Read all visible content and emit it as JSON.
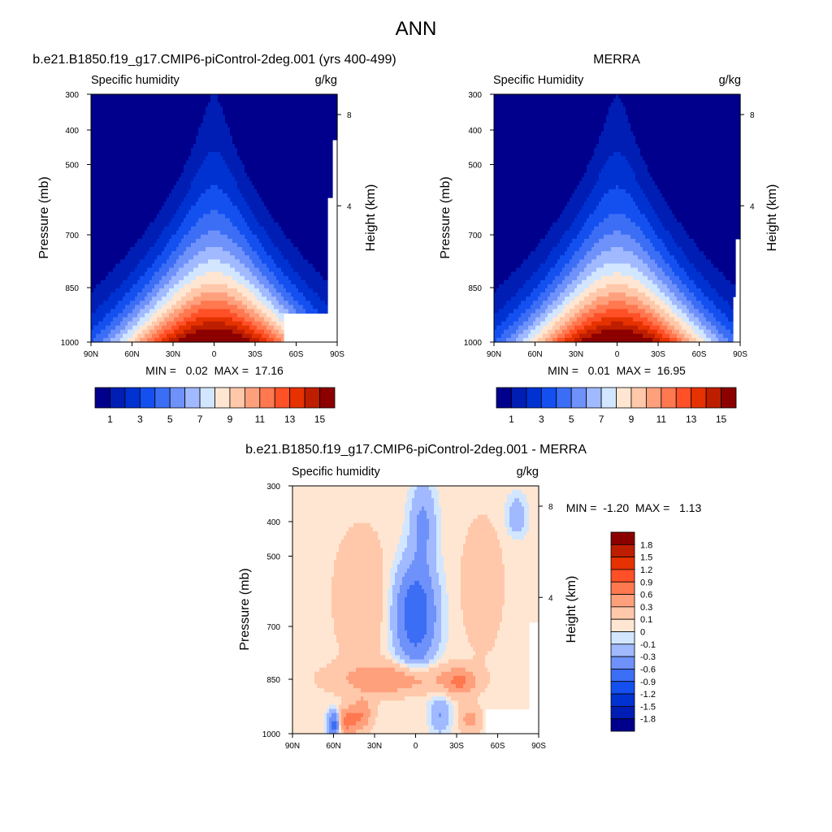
{
  "figure": {
    "title": "ANN"
  },
  "colormaps": {
    "field": [
      "#00008c",
      "#001eb4",
      "#0032d2",
      "#1450f0",
      "#3c6ef5",
      "#6e91fa",
      "#a0b9ff",
      "#d2e6ff",
      "#ffe6d2",
      "#ffc8aa",
      "#ffa07d",
      "#ff7850",
      "#ff5028",
      "#e63200",
      "#be1e00",
      "#8c0000"
    ],
    "diff": [
      "#00008c",
      "#001eb4",
      "#0032d2",
      "#1450f0",
      "#3c6ef5",
      "#6e91fa",
      "#a0b9ff",
      "#d2e6ff",
      "#ffe6d2",
      "#ffc8aa",
      "#ffa07d",
      "#ff7850",
      "#ff5028",
      "#e63200",
      "#be1e00",
      "#8c0000"
    ]
  },
  "chart_data": [
    {
      "id": "model",
      "type": "heatmap",
      "title": "b.e21.B1850.f19_g17.CMIP6-piControl-2deg.001 (yrs 400-499)",
      "left_label": "Specific humidity",
      "right_label": "g/kg",
      "ylabel": "Pressure (mb)",
      "ylabel_right": "Height (km)",
      "xticks": [
        "90N",
        "60N",
        "30N",
        "0",
        "30S",
        "60S",
        "90S"
      ],
      "yticks": [
        "300",
        "400",
        "500",
        "700",
        "850",
        "1000"
      ],
      "yticks_right": [
        "8",
        "4"
      ],
      "stats": "MIN =   0.02  MAX =  17.16",
      "cb_labels": [
        "1",
        "3",
        "5",
        "7",
        "9",
        "11",
        "13",
        "15"
      ],
      "max_value": 17.16,
      "mask_bottom_right": true
    },
    {
      "id": "obs",
      "type": "heatmap",
      "title": "MERRA",
      "left_label": "Specific Humidity",
      "right_label": "g/kg",
      "ylabel": "Pressure (mb)",
      "ylabel_right": "Height (km)",
      "xticks": [
        "90N",
        "60N",
        "30N",
        "0",
        "30S",
        "60S",
        "90S"
      ],
      "yticks": [
        "300",
        "400",
        "500",
        "700",
        "850",
        "1000"
      ],
      "yticks_right": [
        "8",
        "4"
      ],
      "stats": "MIN =   0.01  MAX =  16.95",
      "cb_labels": [
        "1",
        "3",
        "5",
        "7",
        "9",
        "11",
        "13",
        "15"
      ],
      "max_value": 16.95,
      "mask_bottom_right": false
    },
    {
      "id": "diff",
      "type": "heatmap",
      "title": "b.e21.B1850.f19_g17.CMIP6-piControl-2deg.001 - MERRA",
      "left_label": "Specific humidity",
      "right_label": "g/kg",
      "ylabel": "Pressure (mb)",
      "ylabel_right": "Height (km)",
      "xticks": [
        "90N",
        "60N",
        "30N",
        "0",
        "30S",
        "60S",
        "90S"
      ],
      "yticks": [
        "300",
        "400",
        "500",
        "700",
        "850",
        "1000"
      ],
      "yticks_right": [
        "8",
        "4"
      ],
      "stats": "MIN =  -1.20  MAX =   1.13",
      "cb_labels": [
        "1.8",
        "1.5",
        "1.2",
        "0.9",
        "0.6",
        "0.3",
        "0.1",
        "0",
        "-0.1",
        "-0.3",
        "-0.6",
        "-0.9",
        "-1.2",
        "-1.5",
        "-1.8"
      ],
      "min_value": -1.2,
      "max_value": 1.13
    }
  ]
}
